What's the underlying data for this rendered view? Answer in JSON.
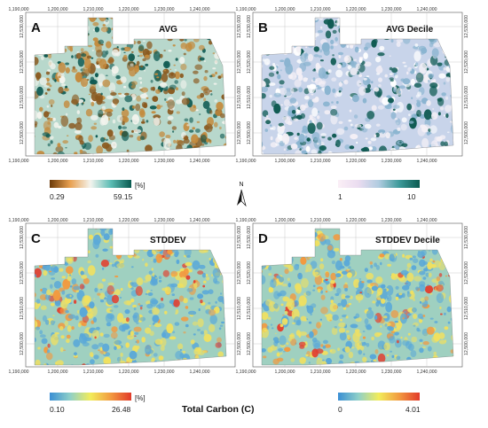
{
  "figure_title": "Total Carbon (C)",
  "north_label": "N",
  "x_ticks": [
    "1,190,000",
    "1,200,000",
    "1,210,000",
    "1,220,000",
    "1,230,000",
    "1,240,000"
  ],
  "y_ticks": [
    "12,530,000",
    "12,520,000",
    "12,510,000",
    "12,500,000"
  ],
  "panels": [
    {
      "id": "A",
      "letter": "A",
      "title": "AVG",
      "scheme": "brown-teal"
    },
    {
      "id": "B",
      "letter": "B",
      "title": "AVG Decile",
      "scheme": "white-teal"
    },
    {
      "id": "C",
      "letter": "C",
      "title": "STDDEV",
      "scheme": "blue-red"
    },
    {
      "id": "D",
      "letter": "D",
      "title": "STDDEV Decile",
      "scheme": "blue-red"
    }
  ],
  "colorbars": {
    "top_left": {
      "min": "0.29",
      "max": "59.15",
      "unit": "[%]",
      "colors": [
        "#6b3a08",
        "#e8a050",
        "#f4f4ee",
        "#5bbcb4",
        "#0a5a50"
      ]
    },
    "top_right": {
      "min": "1",
      "max": "10",
      "unit": "",
      "colors": [
        "#fbeff6",
        "#eadcf0",
        "#b0cce0",
        "#3d9a9a",
        "#0a5a50"
      ]
    },
    "bottom_left": {
      "min": "0.10",
      "max": "26.48",
      "unit": "[%]",
      "colors": [
        "#3a8fd4",
        "#8fd0c8",
        "#f2ec5a",
        "#f29a40",
        "#e23a2a"
      ]
    },
    "bottom_right": {
      "min": "0",
      "max": "4.01",
      "unit": "",
      "colors": [
        "#3a8fd4",
        "#8fd0c8",
        "#f2ec5a",
        "#f29a40",
        "#e23a2a"
      ]
    }
  },
  "color_schemes": {
    "brown-teal": {
      "base": "#b8d8cc",
      "a": "#8a5a20",
      "b": "#c48a3c",
      "c": "#0e5a52",
      "d": "#f4f4ee"
    },
    "white-teal": {
      "base": "#c8d4ea",
      "a": "#f4f0f6",
      "b": "#8ab4d0",
      "c": "#0e5a52",
      "d": "#ffffff"
    },
    "blue-red": {
      "base": "#9fd0c0",
      "a": "#5aa8d8",
      "b": "#f0e060",
      "c": "#e24030",
      "d": "#f29a40"
    }
  }
}
